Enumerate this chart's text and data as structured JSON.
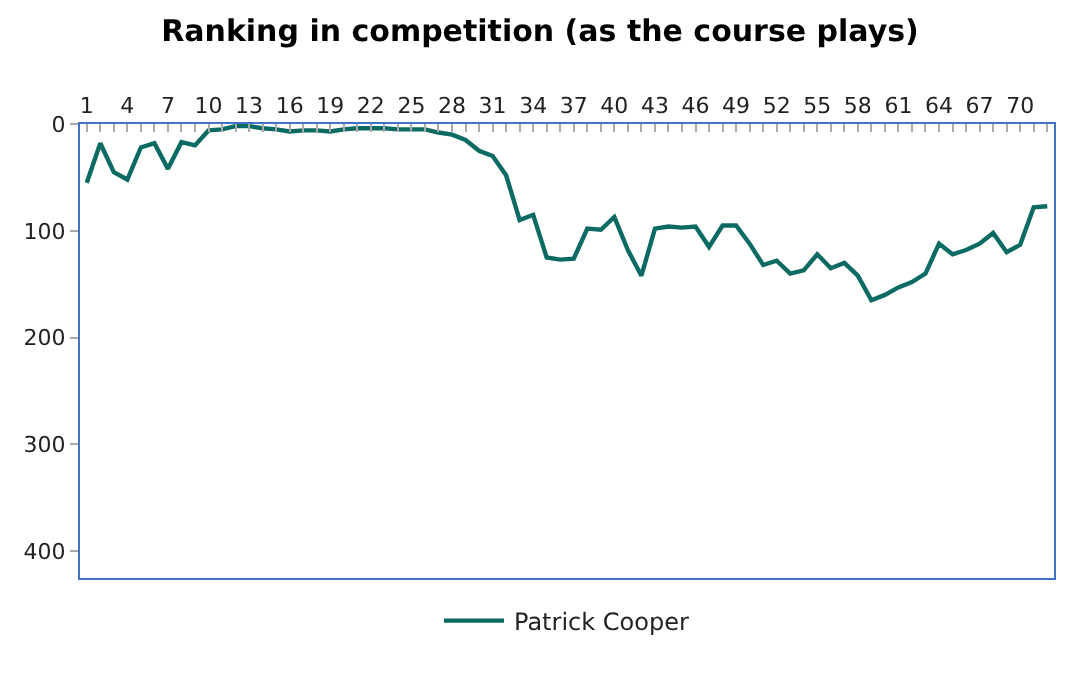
{
  "chart_data": {
    "type": "line",
    "title": "Ranking in competition (as the course plays)",
    "x": [
      1,
      2,
      3,
      4,
      5,
      6,
      7,
      8,
      9,
      10,
      11,
      12,
      13,
      14,
      15,
      16,
      17,
      18,
      19,
      20,
      21,
      22,
      23,
      24,
      25,
      26,
      27,
      28,
      29,
      30,
      31,
      32,
      33,
      34,
      35,
      36,
      37,
      38,
      39,
      40,
      41,
      42,
      43,
      44,
      45,
      46,
      47,
      48,
      49,
      50,
      51,
      52,
      53,
      54,
      55,
      56,
      57,
      58,
      59,
      60,
      61,
      62,
      63,
      64,
      65,
      66,
      67,
      68,
      69,
      70,
      71,
      72
    ],
    "series": [
      {
        "name": "Patrick Cooper",
        "color": "#0b6b63",
        "values": [
          55,
          18,
          45,
          52,
          22,
          18,
          42,
          17,
          20,
          6,
          5,
          2,
          2,
          4,
          5,
          7,
          6,
          6,
          7,
          5,
          4,
          4,
          4,
          5,
          5,
          5,
          8,
          10,
          15,
          25,
          30,
          48,
          90,
          85,
          125,
          127,
          126,
          98,
          99,
          87,
          118,
          142,
          98,
          96,
          97,
          96,
          115,
          95,
          95,
          112,
          132,
          128,
          140,
          137,
          122,
          135,
          130,
          142,
          165,
          160,
          153,
          148,
          140,
          112,
          122,
          118,
          112,
          102,
          120,
          113,
          78,
          77
        ]
      }
    ],
    "xlim": [
      0.5,
      72.5
    ],
    "xticks": [
      1,
      {
        "value": 2,
        "label": null
      },
      {
        "value": 3,
        "label": null
      },
      4,
      {
        "value": 5,
        "label": null
      },
      {
        "value": 6,
        "label": null
      },
      7,
      {
        "value": 8,
        "label": null
      },
      {
        "value": 9,
        "label": null
      },
      10,
      {
        "value": 11,
        "label": null
      },
      {
        "value": 12,
        "label": null
      },
      13,
      {
        "value": 14,
        "label": null
      },
      {
        "value": 15,
        "label": null
      },
      16,
      {
        "value": 17,
        "label": null
      },
      {
        "value": 18,
        "label": null
      },
      19,
      {
        "value": 20,
        "label": null
      },
      {
        "value": 21,
        "label": null
      },
      22,
      {
        "value": 23,
        "label": null
      },
      {
        "value": 24,
        "label": null
      },
      25,
      {
        "value": 26,
        "label": null
      },
      {
        "value": 27,
        "label": null
      },
      28,
      {
        "value": 29,
        "label": null
      },
      {
        "value": 30,
        "label": null
      },
      31,
      {
        "value": 32,
        "label": null
      },
      {
        "value": 33,
        "label": null
      },
      34,
      {
        "value": 35,
        "label": null
      },
      {
        "value": 36,
        "label": null
      },
      37,
      {
        "value": 38,
        "label": null
      },
      {
        "value": 39,
        "label": null
      },
      40,
      {
        "value": 41,
        "label": null
      },
      {
        "value": 42,
        "label": null
      },
      43,
      {
        "value": 44,
        "label": null
      },
      {
        "value": 45,
        "label": null
      },
      46,
      {
        "value": 47,
        "label": null
      },
      {
        "value": 48,
        "label": null
      },
      49,
      {
        "value": 50,
        "label": null
      },
      {
        "value": 51,
        "label": null
      },
      52,
      {
        "value": 53,
        "label": null
      },
      {
        "value": 54,
        "label": null
      },
      55,
      {
        "value": 56,
        "label": null
      },
      {
        "value": 57,
        "label": null
      },
      58,
      {
        "value": 59,
        "label": null
      },
      {
        "value": 60,
        "label": null
      },
      61,
      {
        "value": 62,
        "label": null
      },
      {
        "value": 63,
        "label": null
      },
      64,
      {
        "value": 65,
        "label": null
      },
      {
        "value": 66,
        "label": null
      },
      67,
      {
        "value": 68,
        "label": null
      },
      {
        "value": 69,
        "label": null
      },
      70,
      {
        "value": 71,
        "label": null
      },
      {
        "value": 72,
        "label": null
      }
    ],
    "ylim": [
      425,
      0
    ],
    "yticks": [
      0,
      100,
      200,
      300,
      400
    ],
    "grid": false,
    "legend": "bottom",
    "marker": "none",
    "line_style": "solid"
  }
}
